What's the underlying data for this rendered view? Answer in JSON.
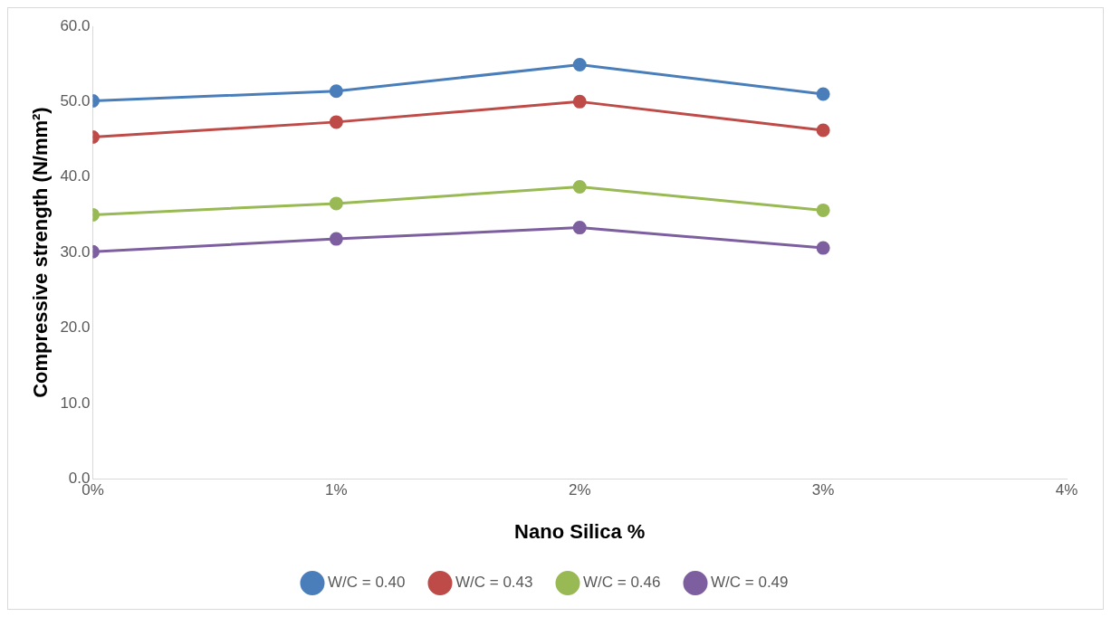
{
  "chart_data": {
    "type": "line",
    "xlabel": "Nano Silica %",
    "ylabel": "Compressive strength (N/mm²)",
    "x": [
      0,
      1,
      2,
      3
    ],
    "xlim": [
      0,
      4
    ],
    "xticks": [
      {
        "value": 0,
        "label": "0%"
      },
      {
        "value": 1,
        "label": "1%"
      },
      {
        "value": 2,
        "label": "2%"
      },
      {
        "value": 3,
        "label": "3%"
      },
      {
        "value": 4,
        "label": "4%"
      }
    ],
    "ylim": [
      0,
      60
    ],
    "yticks": [
      {
        "value": 0,
        "label": "0.0"
      },
      {
        "value": 10,
        "label": "10.0"
      },
      {
        "value": 20,
        "label": "20.0"
      },
      {
        "value": 30,
        "label": "30.0"
      },
      {
        "value": 40,
        "label": "40.0"
      },
      {
        "value": 50,
        "label": "50.0"
      },
      {
        "value": 60,
        "label": "60.0"
      }
    ],
    "series": [
      {
        "name": "W/C = 0.40",
        "color": "#4a7ebb",
        "values": [
          50.1,
          51.4,
          54.9,
          51.0
        ]
      },
      {
        "name": "W/C = 0.43",
        "color": "#be4b48",
        "values": [
          45.3,
          47.3,
          50.0,
          46.2
        ]
      },
      {
        "name": "W/C = 0.46",
        "color": "#98b954",
        "values": [
          35.0,
          36.5,
          38.7,
          35.6
        ]
      },
      {
        "name": "W/C = 0.49",
        "color": "#7d5fa0",
        "values": [
          30.1,
          31.8,
          33.3,
          30.6
        ]
      }
    ],
    "grid": false,
    "legend": "bottom",
    "marker": "circle",
    "line_style": "solid"
  }
}
